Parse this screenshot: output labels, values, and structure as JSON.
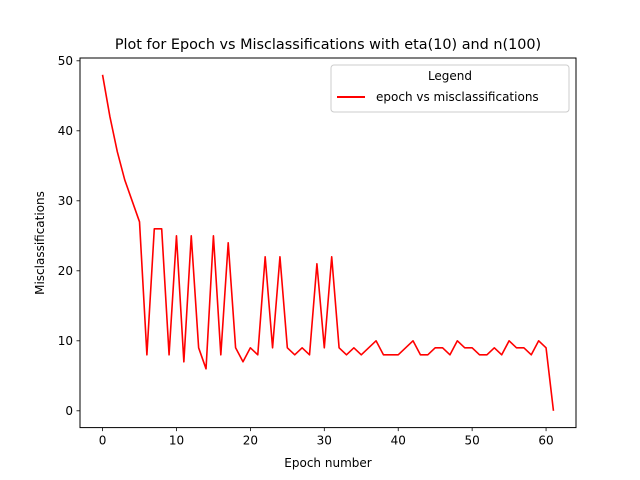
{
  "chart_data": {
    "type": "line",
    "title": "Plot for Epoch vs Misclassifications with eta(10) and n(100)",
    "xlabel": "Epoch number",
    "ylabel": "Misclassifications",
    "xlim": [
      -3.05,
      64.05
    ],
    "ylim": [
      -2.4,
      50.4
    ],
    "xticks": [
      0,
      10,
      20,
      30,
      40,
      50,
      60
    ],
    "yticks": [
      0,
      10,
      20,
      30,
      40,
      50
    ],
    "grid": false,
    "legend": {
      "title": "Legend",
      "placement": "top-right"
    },
    "series": [
      {
        "name": "epoch vs misclassifications",
        "color": "#ff0000",
        "x": [
          0,
          1,
          2,
          3,
          4,
          5,
          6,
          7,
          8,
          9,
          10,
          11,
          12,
          13,
          14,
          15,
          16,
          17,
          18,
          19,
          20,
          21,
          22,
          23,
          24,
          25,
          26,
          27,
          28,
          29,
          30,
          31,
          32,
          33,
          34,
          35,
          36,
          37,
          38,
          39,
          40,
          41,
          42,
          43,
          44,
          45,
          46,
          47,
          48,
          49,
          50,
          51,
          52,
          53,
          54,
          55,
          56,
          57,
          58,
          59,
          60,
          61
        ],
        "y": [
          48,
          42,
          37,
          33,
          30,
          27,
          8,
          26,
          26,
          8,
          25,
          7,
          25,
          9,
          6,
          25,
          8,
          24,
          9,
          7,
          9,
          8,
          22,
          9,
          22,
          9,
          8,
          9,
          8,
          21,
          9,
          22,
          9,
          8,
          9,
          8,
          9,
          10,
          8,
          8,
          8,
          9,
          10,
          8,
          8,
          9,
          9,
          8,
          10,
          9,
          9,
          8,
          8,
          9,
          8,
          10,
          9,
          9,
          8,
          10,
          9,
          0
        ]
      }
    ]
  }
}
